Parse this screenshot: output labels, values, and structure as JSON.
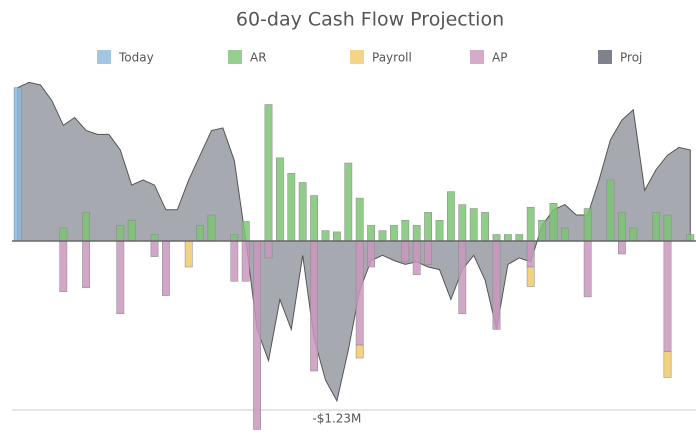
{
  "chart_data": {
    "type": "bar",
    "title": "60-day Cash Flow Projection",
    "ylim": [
      -1.5,
      1.3
    ],
    "series": [
      {
        "name": "Today",
        "color": "#8cb8dd",
        "values": [
          1.18,
          null,
          null,
          null,
          null,
          null,
          null,
          null,
          null,
          null,
          null,
          null,
          null,
          null,
          null,
          null,
          null,
          null,
          null,
          null,
          null,
          null,
          null,
          null,
          null,
          null,
          null,
          null,
          null,
          null,
          null,
          null,
          null,
          null,
          null,
          null,
          null,
          null,
          null,
          null,
          null,
          null,
          null,
          null,
          null,
          null,
          null,
          null,
          null,
          null,
          null,
          null,
          null,
          null,
          null,
          null,
          null,
          null,
          null,
          null
        ]
      },
      {
        "name": "AR",
        "color": "#7cc474",
        "values": [
          null,
          null,
          null,
          null,
          0.1,
          null,
          0.22,
          null,
          null,
          0.12,
          0.16,
          null,
          0.05,
          null,
          null,
          null,
          0.12,
          0.2,
          null,
          0.05,
          0.15,
          null,
          1.05,
          0.64,
          0.52,
          0.45,
          0.35,
          0.08,
          0.07,
          0.6,
          0.33,
          0.12,
          0.08,
          0.12,
          0.16,
          0.12,
          0.22,
          0.16,
          0.38,
          0.28,
          0.25,
          0.22,
          0.05,
          0.05,
          0.05,
          0.26,
          0.16,
          0.29,
          0.1,
          null,
          0.25,
          null,
          0.47,
          0.22,
          0.1,
          null,
          0.22,
          0.2,
          null,
          0.05
        ]
      },
      {
        "name": "Payroll",
        "color": "#f0c96a",
        "values": [
          null,
          null,
          null,
          null,
          null,
          null,
          null,
          null,
          null,
          null,
          null,
          null,
          null,
          null,
          null,
          -0.2,
          null,
          null,
          null,
          null,
          null,
          null,
          null,
          null,
          null,
          null,
          null,
          null,
          null,
          null,
          -0.1,
          null,
          null,
          null,
          null,
          null,
          null,
          null,
          null,
          null,
          null,
          null,
          null,
          null,
          null,
          -0.15,
          null,
          null,
          null,
          null,
          null,
          null,
          null,
          null,
          null,
          null,
          null,
          -0.2,
          null,
          null
        ]
      },
      {
        "name": "AP",
        "color": "#c996bd",
        "values": [
          null,
          null,
          null,
          null,
          -0.39,
          null,
          -0.36,
          null,
          null,
          -0.56,
          null,
          null,
          -0.12,
          -0.42,
          null,
          null,
          null,
          null,
          null,
          -0.31,
          -0.31,
          -1.45,
          -0.13,
          null,
          null,
          null,
          -1.0,
          null,
          null,
          null,
          -0.8,
          -0.2,
          null,
          null,
          -0.16,
          -0.26,
          -0.18,
          null,
          null,
          -0.56,
          null,
          null,
          -0.68,
          null,
          null,
          -0.2,
          null,
          null,
          null,
          null,
          -0.43,
          null,
          null,
          -0.1,
          null,
          null,
          null,
          -0.85,
          null,
          null
        ]
      },
      {
        "name": "Proj",
        "color": "#5f6370",
        "type": "area",
        "values": [
          1.18,
          1.22,
          1.2,
          1.08,
          0.89,
          0.95,
          0.85,
          0.82,
          0.82,
          0.7,
          0.43,
          0.47,
          0.43,
          0.24,
          0.24,
          0.47,
          0.66,
          0.85,
          0.87,
          0.62,
          0.01,
          -0.68,
          -0.92,
          -0.45,
          -0.68,
          -0.11,
          -0.75,
          -1.07,
          -1.23,
          -0.84,
          -0.38,
          -0.15,
          -0.11,
          -0.15,
          -0.18,
          -0.16,
          -0.2,
          -0.22,
          -0.45,
          -0.22,
          -0.11,
          -0.3,
          -0.68,
          -0.18,
          -0.13,
          -0.16,
          0.12,
          0.24,
          0.28,
          0.2,
          0.2,
          0.47,
          0.78,
          0.93,
          1.01,
          0.39,
          0.55,
          0.66,
          0.72,
          0.7
        ],
        "value_labels": [
          null,
          null,
          null,
          null,
          null,
          null,
          null,
          null,
          null,
          null,
          null,
          null,
          null,
          null,
          null,
          null,
          null,
          null,
          null,
          null,
          null,
          null,
          null,
          null,
          null,
          null,
          null,
          null,
          "-$1.23M",
          null,
          null,
          null,
          null,
          null,
          null,
          null,
          null,
          null,
          null,
          null,
          null,
          null,
          null,
          null,
          null,
          null,
          null,
          null,
          null,
          null,
          null,
          null,
          null,
          null,
          null,
          null,
          null,
          null,
          null,
          null
        ]
      }
    ]
  }
}
